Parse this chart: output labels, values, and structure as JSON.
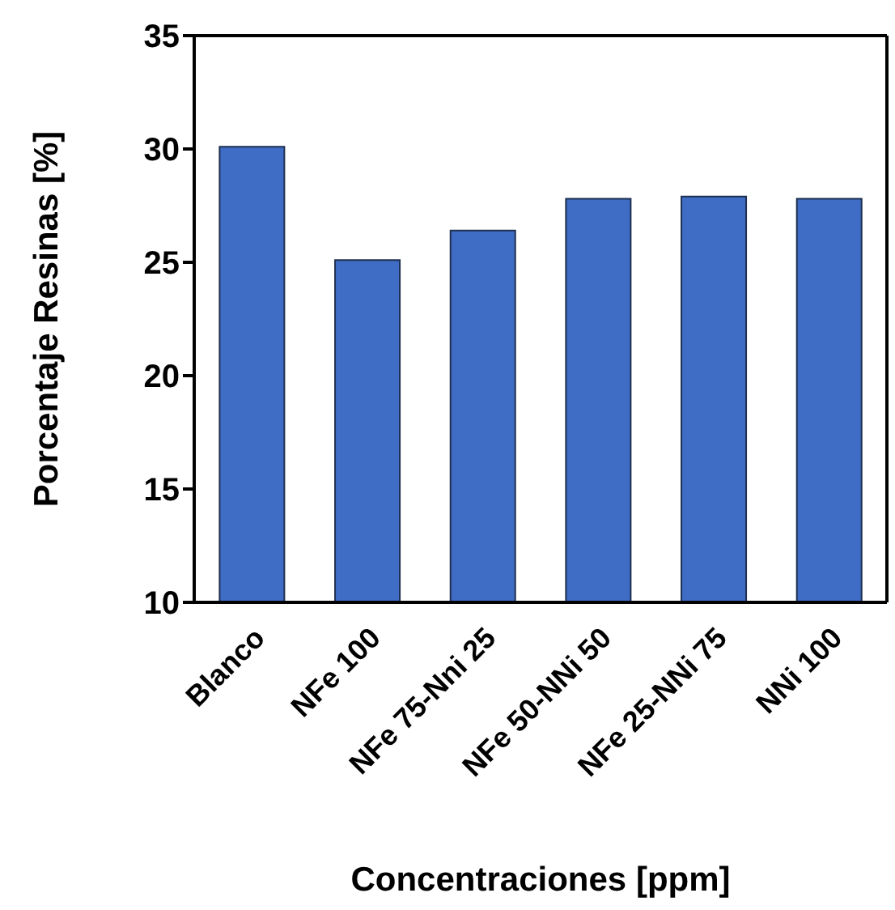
{
  "chart_data": {
    "type": "bar",
    "xlabel": "Concentraciones [ppm]",
    "ylabel": "Porcentaje Resinas [%]",
    "categories": [
      "Blanco",
      "NFe 100",
      "NFe 75-Nni 25",
      "NFe 50-NNi 50",
      "NFe 25-NNi 75",
      "NNi 100"
    ],
    "values": [
      30.1,
      25.1,
      26.4,
      27.8,
      27.9,
      27.8
    ],
    "color": "#3f6cc4",
    "ylim": [
      10,
      35
    ],
    "yticks": [
      10,
      15,
      20,
      25,
      30,
      35
    ],
    "grid": false,
    "legend": false
  }
}
